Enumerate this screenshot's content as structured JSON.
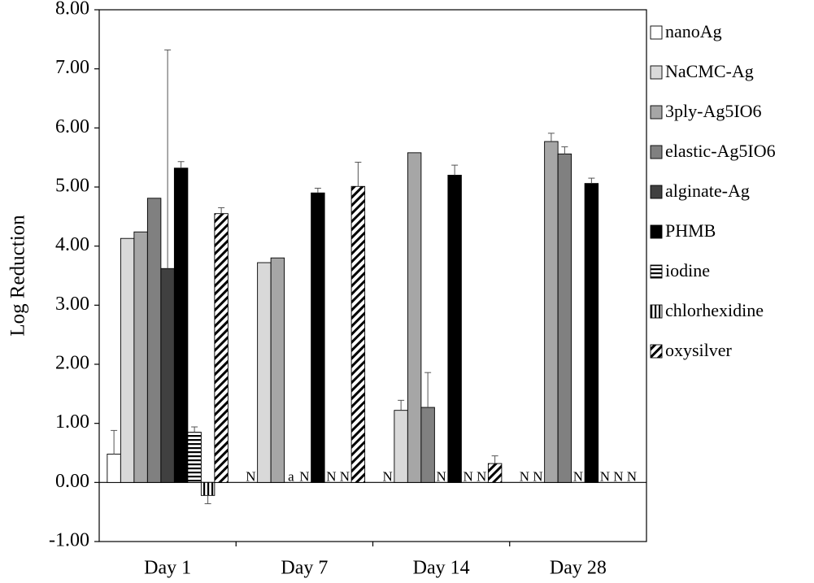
{
  "chart_data": {
    "type": "bar",
    "ylabel": "Log Reduction",
    "ylim": [
      -1,
      8
    ],
    "ytick_values": [
      -1,
      0,
      1,
      2,
      3,
      4,
      5,
      6,
      7,
      8
    ],
    "ytick_labels": [
      "-1.00",
      "0.00",
      "1.00",
      "2.00",
      "3.00",
      "4.00",
      "5.00",
      "6.00",
      "7.00",
      "8.00"
    ],
    "categories": [
      "Day 1",
      "Day 7",
      "Day 14",
      "Day 28"
    ],
    "legend_position": "right",
    "grid": false,
    "series": [
      {
        "name": "nanoAg",
        "pattern": "white",
        "values": [
          0.48,
          null,
          null,
          null
        ],
        "errors": [
          0.4,
          null,
          null,
          null
        ],
        "na": [
          null,
          "N",
          "N",
          "N"
        ]
      },
      {
        "name": "NaCMC-Ag",
        "pattern": "lightgray",
        "values": [
          4.13,
          3.72,
          1.22,
          null
        ],
        "errors": [
          null,
          null,
          0.17,
          null
        ],
        "na": [
          null,
          null,
          null,
          "N"
        ]
      },
      {
        "name": "3ply-Ag5IO6",
        "pattern": "gray",
        "values": [
          4.24,
          3.8,
          5.58,
          5.77
        ],
        "errors": [
          null,
          null,
          null,
          0.14
        ],
        "na": [
          null,
          null,
          null,
          null
        ]
      },
      {
        "name": "elastic-Ag5IO6",
        "pattern": "midgray",
        "values": [
          4.81,
          null,
          1.27,
          5.56
        ],
        "errors": [
          null,
          null,
          0.59,
          0.12
        ],
        "na": [
          null,
          "a",
          null,
          null
        ]
      },
      {
        "name": "alginate-Ag",
        "pattern": "darkgray",
        "values": [
          3.62,
          null,
          null,
          null
        ],
        "errors": [
          3.7,
          null,
          null,
          null
        ],
        "na": [
          null,
          "N",
          "N",
          "N"
        ]
      },
      {
        "name": "PHMB",
        "pattern": "black",
        "values": [
          5.32,
          4.9,
          5.2,
          5.06
        ],
        "errors": [
          0.11,
          0.08,
          0.17,
          0.09
        ],
        "na": [
          null,
          null,
          null,
          null
        ]
      },
      {
        "name": "iodine",
        "pattern": "hstripe",
        "values": [
          0.85,
          null,
          null,
          null
        ],
        "errors": [
          0.09,
          null,
          null,
          null
        ],
        "na": [
          null,
          "N",
          "N",
          "N"
        ]
      },
      {
        "name": "chlorhexidine",
        "pattern": "vstripe",
        "values": [
          -0.22,
          null,
          null,
          null
        ],
        "errors": [
          0.14,
          null,
          null,
          null
        ],
        "na": [
          null,
          "N",
          "N",
          "N"
        ]
      },
      {
        "name": "oxysilver",
        "pattern": "diagonal",
        "values": [
          4.55,
          5.01,
          0.32,
          null
        ],
        "errors": [
          0.1,
          0.41,
          0.13,
          null
        ],
        "na": [
          null,
          null,
          null,
          "N"
        ]
      }
    ]
  }
}
